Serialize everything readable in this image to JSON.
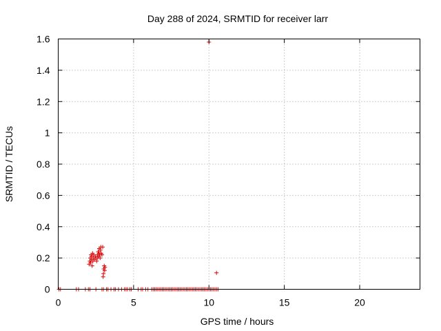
{
  "chart_data": {
    "type": "scatter",
    "title": "Day 288 of 2024, SRMTID for receiver larr",
    "xlabel": "GPS time / hours",
    "ylabel": "SRMTID / TECUs",
    "xlim": [
      0,
      24
    ],
    "ylim": [
      0,
      1.6
    ],
    "x_ticks": [
      0,
      5,
      10,
      15,
      20
    ],
    "x_tick_labels": [
      "0",
      "5",
      "10",
      "15",
      "20"
    ],
    "y_ticks": [
      0,
      0.2,
      0.4,
      0.6,
      0.8,
      1.0,
      1.2,
      1.4,
      1.6
    ],
    "y_tick_labels": [
      "0",
      "0.2",
      "0.4",
      "0.6",
      "0.8",
      "1",
      "1.2",
      "1.4",
      "1.6"
    ],
    "grid": true,
    "marker": "+",
    "color": "#e00000",
    "series": [
      {
        "name": "SRMTID",
        "points": [
          [
            0.05,
            0
          ],
          [
            0.15,
            0
          ],
          [
            1.2,
            0
          ],
          [
            1.35,
            0
          ],
          [
            1.8,
            0
          ],
          [
            2.0,
            0
          ],
          [
            2.1,
            0
          ],
          [
            2.5,
            0
          ],
          [
            2.9,
            0
          ],
          [
            3.0,
            0
          ],
          [
            3.2,
            0
          ],
          [
            3.3,
            0
          ],
          [
            3.5,
            0
          ],
          [
            3.7,
            0
          ],
          [
            3.8,
            0
          ],
          [
            4.0,
            0
          ],
          [
            4.2,
            0
          ],
          [
            4.4,
            0
          ],
          [
            4.5,
            0
          ],
          [
            4.6,
            0
          ],
          [
            4.75,
            0
          ],
          [
            4.85,
            0
          ],
          [
            5.3,
            0
          ],
          [
            5.5,
            0
          ],
          [
            5.6,
            0
          ],
          [
            5.8,
            0
          ],
          [
            5.95,
            0
          ],
          [
            6.2,
            0
          ],
          [
            6.3,
            0
          ],
          [
            6.4,
            0
          ],
          [
            6.5,
            0
          ],
          [
            6.6,
            0
          ],
          [
            6.7,
            0
          ],
          [
            6.8,
            0
          ],
          [
            6.9,
            0
          ],
          [
            7.0,
            0
          ],
          [
            7.1,
            0
          ],
          [
            7.2,
            0
          ],
          [
            7.3,
            0
          ],
          [
            7.4,
            0
          ],
          [
            7.5,
            0
          ],
          [
            7.6,
            0
          ],
          [
            7.7,
            0
          ],
          [
            7.8,
            0
          ],
          [
            7.9,
            0
          ],
          [
            8.0,
            0
          ],
          [
            8.1,
            0
          ],
          [
            8.2,
            0
          ],
          [
            8.3,
            0
          ],
          [
            8.4,
            0
          ],
          [
            8.5,
            0
          ],
          [
            8.6,
            0
          ],
          [
            8.7,
            0
          ],
          [
            8.8,
            0
          ],
          [
            8.9,
            0
          ],
          [
            9.0,
            0
          ],
          [
            9.1,
            0
          ],
          [
            9.2,
            0
          ],
          [
            9.3,
            0
          ],
          [
            9.4,
            0
          ],
          [
            9.5,
            0
          ],
          [
            9.6,
            0
          ],
          [
            9.7,
            0
          ],
          [
            9.8,
            0
          ],
          [
            9.9,
            0
          ],
          [
            10.0,
            0
          ],
          [
            10.1,
            0
          ],
          [
            10.2,
            0
          ],
          [
            10.3,
            0
          ],
          [
            10.4,
            0
          ],
          [
            10.5,
            0
          ],
          [
            10.6,
            0
          ],
          [
            2.05,
            0.16
          ],
          [
            2.1,
            0.18
          ],
          [
            2.12,
            0.2
          ],
          [
            2.15,
            0.17
          ],
          [
            2.18,
            0.22
          ],
          [
            2.2,
            0.19
          ],
          [
            2.22,
            0.21
          ],
          [
            2.25,
            0.15
          ],
          [
            2.28,
            0.23
          ],
          [
            2.3,
            0.18
          ],
          [
            2.32,
            0.2
          ],
          [
            2.35,
            0.22
          ],
          [
            2.4,
            0.19
          ],
          [
            2.45,
            0.21
          ],
          [
            2.5,
            0.2
          ],
          [
            2.55,
            0.18
          ],
          [
            2.6,
            0.22
          ],
          [
            2.62,
            0.2
          ],
          [
            2.65,
            0.24
          ],
          [
            2.68,
            0.21
          ],
          [
            2.7,
            0.23
          ],
          [
            2.72,
            0.26
          ],
          [
            2.75,
            0.22
          ],
          [
            2.78,
            0.2
          ],
          [
            2.8,
            0.25
          ],
          [
            2.82,
            0.27
          ],
          [
            2.85,
            0.23
          ],
          [
            2.9,
            0.22
          ],
          [
            2.95,
            0.27
          ],
          [
            2.98,
            0.08
          ],
          [
            3.0,
            0.1
          ],
          [
            3.02,
            0.13
          ],
          [
            3.05,
            0.15
          ],
          [
            3.08,
            0.12
          ],
          [
            3.1,
            0.14
          ],
          [
            10.0,
            1.58
          ],
          [
            10.5,
            0.105
          ]
        ]
      }
    ]
  }
}
